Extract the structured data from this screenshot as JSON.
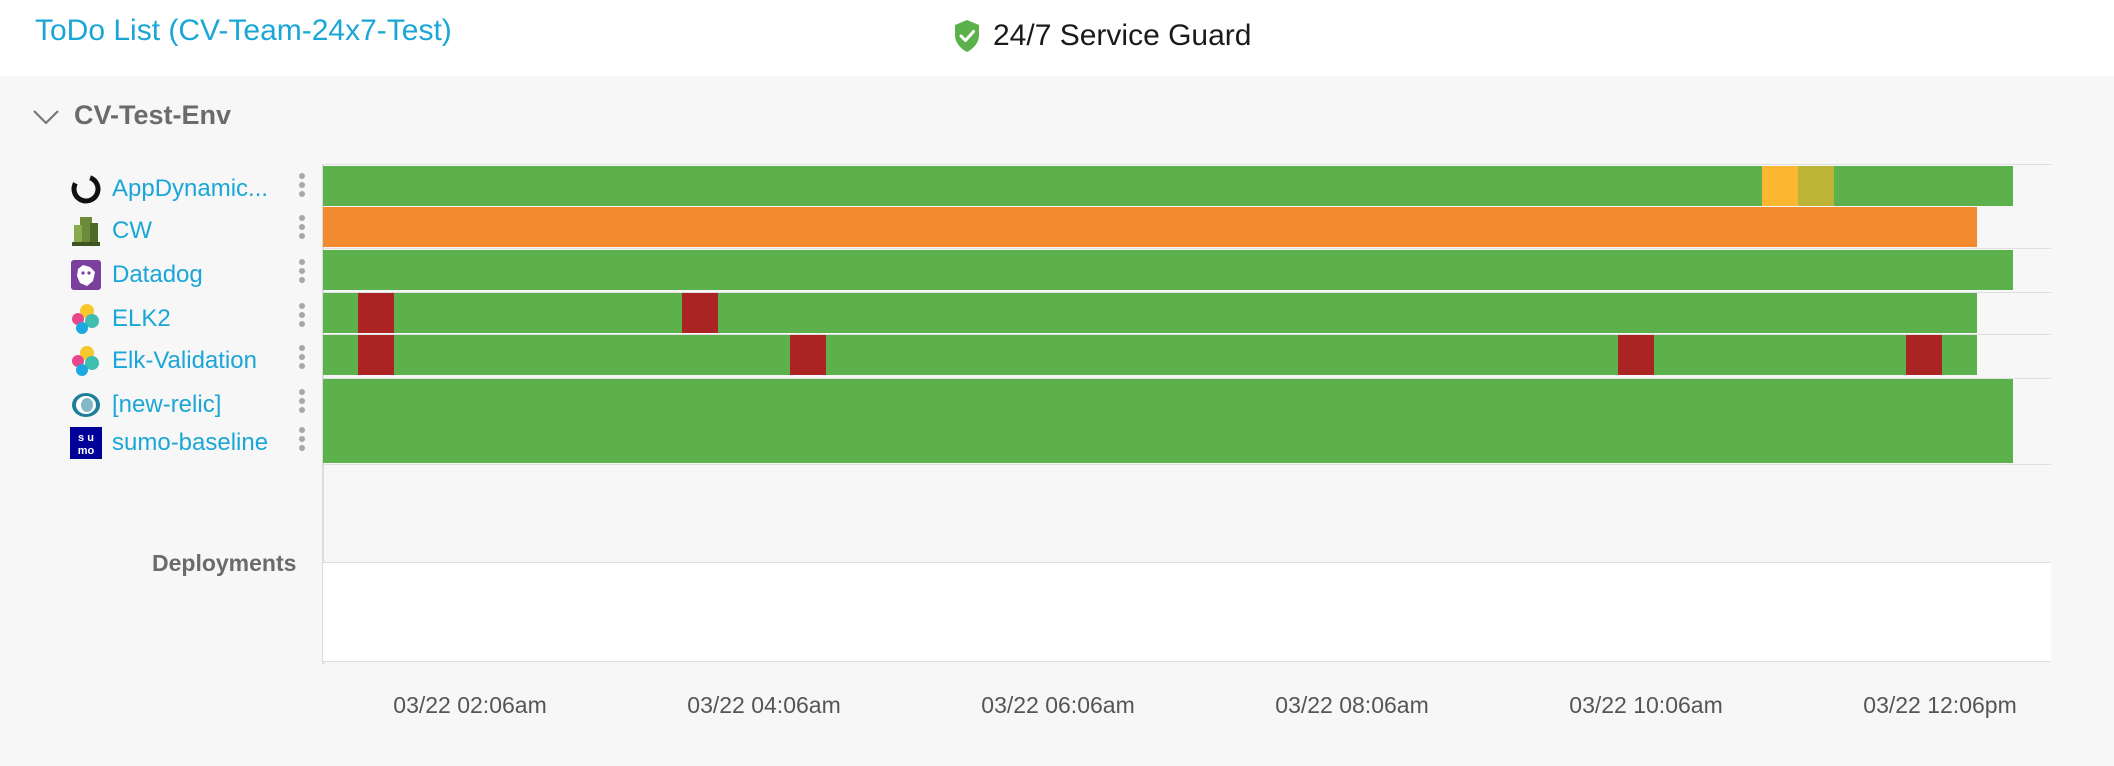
{
  "header": {
    "title": "ToDo List (CV-Team-24x7-Test)",
    "service_guard": "24/7 Service Guard"
  },
  "env": {
    "name": "CV-Test-Env"
  },
  "colors": {
    "ok": "#5cb14c",
    "warn": "#f28a2f",
    "amber": "#fbb732",
    "olive": "#bcb437",
    "critical": "#ab2424",
    "link": "#1aa6d6"
  },
  "providers": [
    {
      "label": "AppDynamic...",
      "icon": "appdynamics-icon"
    },
    {
      "label": "CW",
      "icon": "cloudwatch-icon"
    },
    {
      "label": "Datadog",
      "icon": "datadog-icon"
    },
    {
      "label": "ELK2",
      "icon": "elk-icon"
    },
    {
      "label": "Elk-Validation",
      "icon": "elk-icon"
    },
    {
      "label": "[new-relic]",
      "icon": "newrelic-icon"
    },
    {
      "label": "sumo-baseline",
      "icon": "sumo-logic-icon"
    }
  ],
  "sumo_logo_text": {
    "top": "s u",
    "bottom": "mo"
  },
  "deployments": {
    "label": "Deployments"
  },
  "time_axis": {
    "ticks": [
      "03/22 02:06am",
      "03/22 04:06am",
      "03/22 06:06am",
      "03/22 08:06am",
      "03/22 10:06am",
      "03/22 12:06pm"
    ]
  }
}
